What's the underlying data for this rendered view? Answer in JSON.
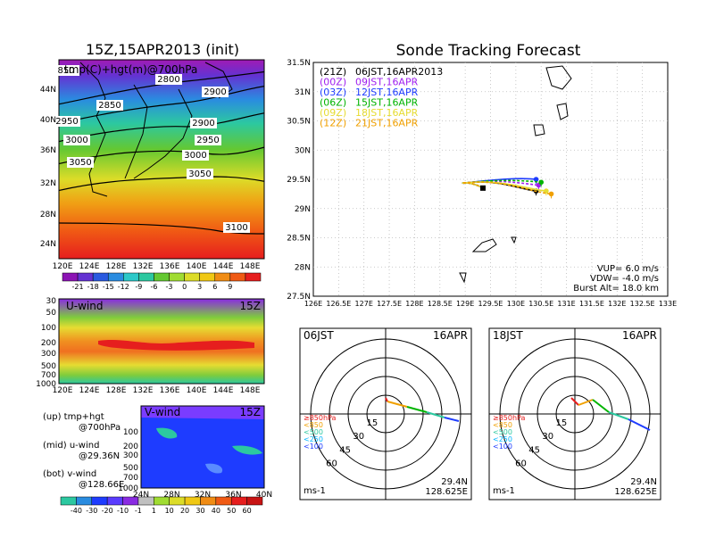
{
  "left": {
    "title": "15Z,15APR2013 (init)",
    "map_label": "tmp(C)+hgt(m)@700hPa",
    "lat_ticks": [
      "44N",
      "40N",
      "36N",
      "32N",
      "28N",
      "24N"
    ],
    "lon_ticks": [
      "120E",
      "124E",
      "128E",
      "132E",
      "136E",
      "140E",
      "144E",
      "148E"
    ],
    "contours": [
      "2800",
      "2850",
      "2900",
      "2900",
      "2950",
      "2950",
      "3000",
      "3000",
      "3050",
      "3050",
      "3100",
      "850"
    ],
    "tmp_colorbar": [
      "-21",
      "-18",
      "-15",
      "-12",
      "-9",
      "-6",
      "-3",
      "0",
      "3",
      "6",
      "9"
    ],
    "uwind": {
      "label": "U-wind",
      "time": "15Z",
      "levels": [
        "30",
        "50",
        "100",
        "200",
        "300",
        "500",
        "700",
        "1000"
      ],
      "lon_ticks": [
        "120E",
        "124E",
        "128E",
        "132E",
        "136E",
        "140E",
        "144E",
        "148E"
      ]
    },
    "vwind": {
      "label": "V-wind",
      "time": "15Z",
      "levels": [
        "100",
        "200",
        "300",
        "500",
        "700",
        "1000"
      ],
      "lat_ticks": [
        "24N",
        "28N",
        "32N",
        "36N",
        "40N"
      ]
    },
    "legend": [
      {
        "a": "(up) tmp+hgt",
        "b": "@700hPa"
      },
      {
        "a": "(mid) u-wind",
        "b": "@29.36N"
      },
      {
        "a": "(bot) v-wind",
        "b": "@128.66E"
      }
    ],
    "wind_colorbar": [
      "-40",
      "-30",
      "-20",
      "-10",
      "-1",
      "1",
      "10",
      "20",
      "30",
      "40",
      "50",
      "60"
    ]
  },
  "track": {
    "title": "Sonde Tracking Forecast",
    "lat_ticks": [
      "31.5N",
      "31N",
      "30.5N",
      "30N",
      "29.5N",
      "29N",
      "28.5N",
      "28N",
      "27.5N"
    ],
    "lon_ticks": [
      "126E",
      "126.5E",
      "127E",
      "127.5E",
      "128E",
      "128.5E",
      "129E",
      "129.5E",
      "130E",
      "130.5E",
      "131E",
      "131.5E",
      "132E",
      "132.5E",
      "133E"
    ],
    "launches": [
      {
        "z": "(21Z)",
        "jst": "06JST,16APR2013",
        "color": "#000000"
      },
      {
        "z": "(00Z)",
        "jst": "09JST,16APR",
        "color": "#a020f0"
      },
      {
        "z": "(03Z)",
        "jst": "12JST,16APR",
        "color": "#1e3cff"
      },
      {
        "z": "(06Z)",
        "jst": "15JST,16APR",
        "color": "#00b400"
      },
      {
        "z": "(09Z)",
        "jst": "18JST,16APR",
        "color": "#e6dc32"
      },
      {
        "z": "(12Z)",
        "jst": "21JST,16APR",
        "color": "#f0a000"
      }
    ],
    "params": [
      "VUP= 6.0 m/s",
      "VDW= -4.0 m/s",
      "Burst Alt= 18.0 km"
    ]
  },
  "hodo": [
    {
      "time": "06JST",
      "date": "16APR",
      "lat": "29.4N",
      "lon": "128.625E",
      "unit": "ms-1",
      "rings": [
        "15",
        "30",
        "45",
        "60"
      ],
      "levels": [
        "≥850hPa",
        "<850",
        "<500",
        "<250",
        "<100"
      ]
    },
    {
      "time": "18JST",
      "date": "16APR",
      "lat": "29.4N",
      "lon": "128.625E",
      "unit": "ms-1",
      "rings": [
        "15",
        "30",
        "45",
        "60"
      ],
      "levels": [
        "≥850hPa",
        "<850",
        "<500",
        "<250",
        "<100"
      ]
    }
  ],
  "chart_data": [
    {
      "type": "table",
      "title": "Sonde Tracking Forecast",
      "launch_location": {
        "lon": 129.35,
        "lat": 29.35
      },
      "series": [
        {
          "name": "(21Z) 06JST,16APR2013",
          "end": {
            "lon": 130.4,
            "lat": 29.3
          }
        },
        {
          "name": "(00Z) 09JST,16APR",
          "end": {
            "lon": 130.45,
            "lat": 29.4
          }
        },
        {
          "name": "(03Z) 12JST,16APR",
          "end": {
            "lon": 130.4,
            "lat": 29.5
          }
        },
        {
          "name": "(06Z) 15JST,16APR",
          "end": {
            "lon": 130.5,
            "lat": 29.45
          }
        },
        {
          "name": "(09Z) 18JST,16APR",
          "end": {
            "lon": 130.6,
            "lat": 29.3
          }
        },
        {
          "name": "(12Z) 21JST,16APR",
          "end": {
            "lon": 130.7,
            "lat": 29.25
          }
        }
      ],
      "xlim": [
        126,
        133
      ],
      "ylim": [
        27.5,
        31.5
      ]
    }
  ]
}
